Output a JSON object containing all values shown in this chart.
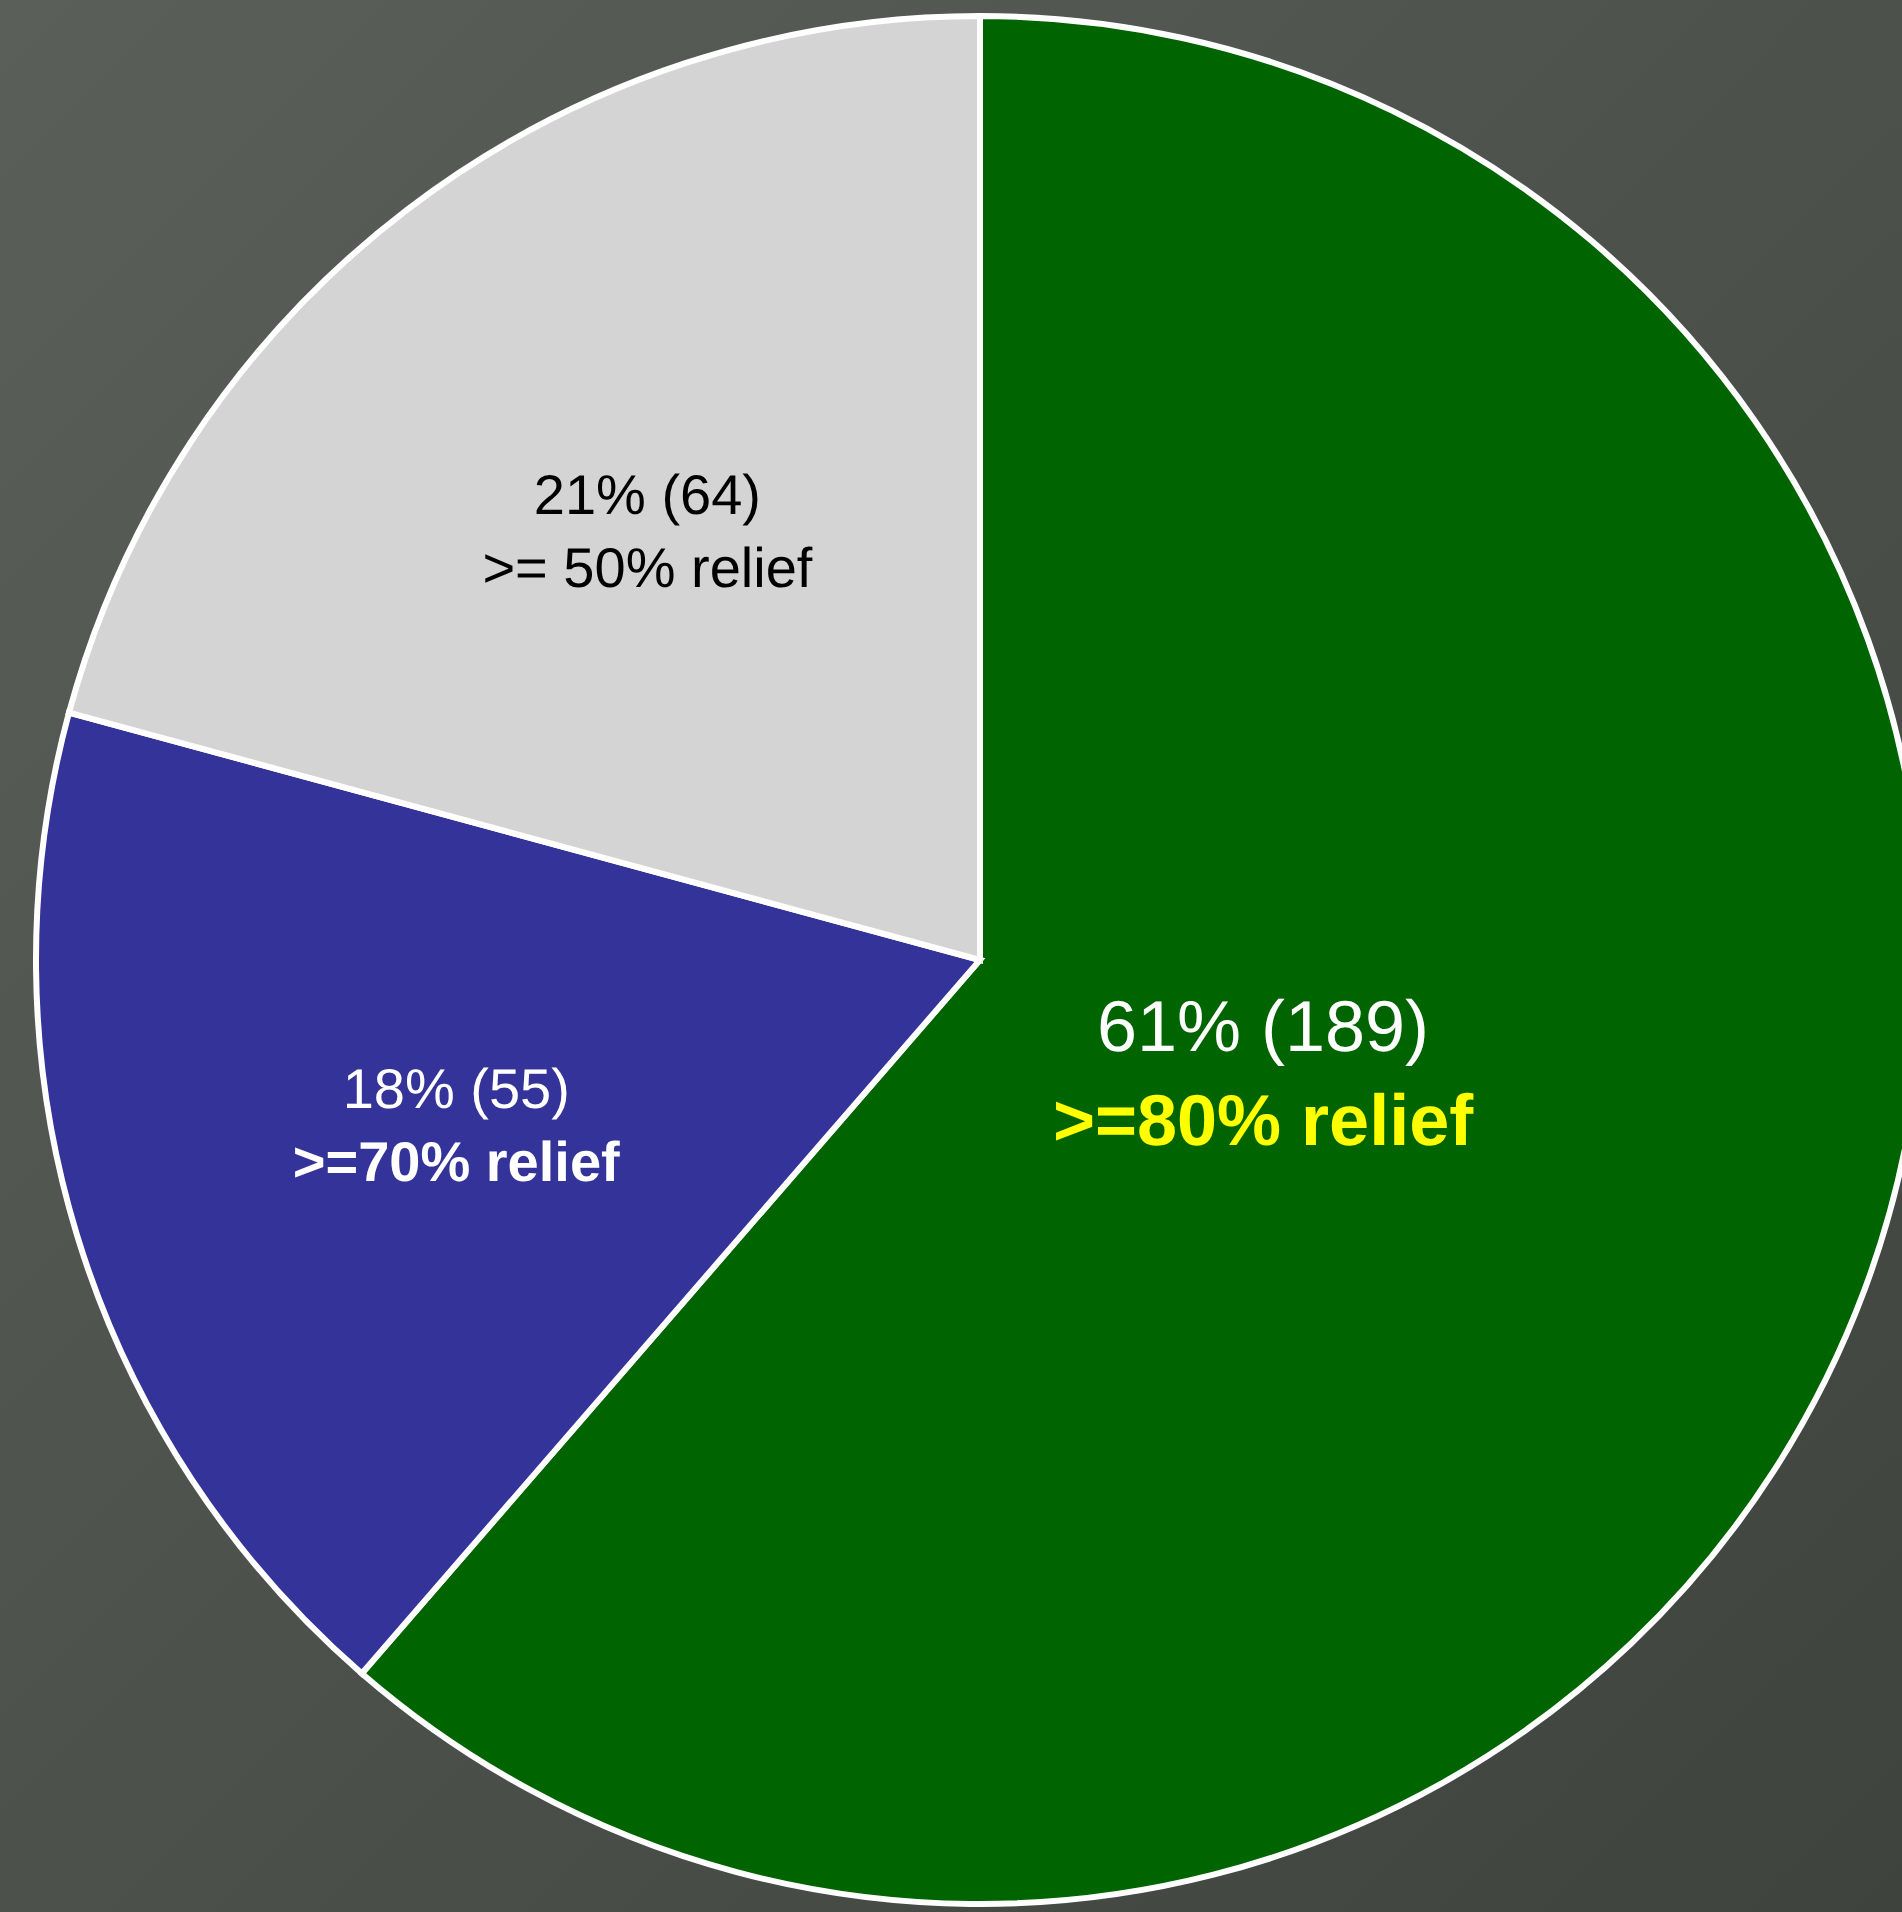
{
  "chart_data": {
    "type": "pie",
    "categories": [
      ">=80% relief",
      ">=70% relief",
      ">= 50% relief"
    ],
    "values": [
      189,
      55,
      64
    ],
    "value_labels": [
      "61% (189)",
      "18% (55)",
      "21% (64)"
    ],
    "colors": [
      "#006400",
      "#333399",
      "#d4d4d4"
    ],
    "legend": false
  }
}
